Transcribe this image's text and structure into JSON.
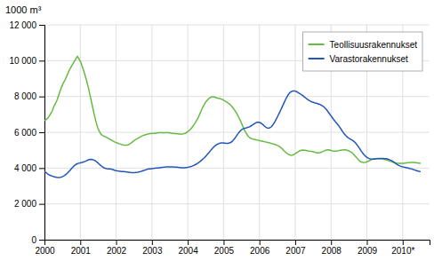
{
  "chart_data": {
    "type": "line",
    "ylabel": "1000 m³",
    "xlim": [
      2000,
      2010.75
    ],
    "xticks": [
      2000,
      2001,
      2002,
      2003,
      2004,
      2005,
      2006,
      2007,
      2008,
      2009,
      {
        "value": 2010,
        "label": "2010*"
      }
    ],
    "ylim": [
      0,
      12000
    ],
    "yticks": [
      0,
      {
        "value": 2000,
        "label": "2 000"
      },
      {
        "value": 4000,
        "label": "4 000"
      },
      {
        "value": 6000,
        "label": "6 000"
      },
      {
        "value": 8000,
        "label": "8 000"
      },
      {
        "value": 10000,
        "label": "10 000"
      },
      {
        "value": 12000,
        "label": "12 000"
      }
    ],
    "grid": true,
    "legend": "upper right",
    "series": [
      {
        "name": "Teollisuusrakennukset",
        "color": "#66bb44",
        "x": [
          2000,
          2000.04375,
          2000.0875,
          2000.13125,
          2000.175,
          2000.21875,
          2000.2625,
          2000.30625,
          2000.35,
          2000.39375,
          2000.4375,
          2000.48125,
          2000.525,
          2000.56875,
          2000.6125,
          2000.65625,
          2000.7,
          2000.74375,
          2000.7875,
          2000.83125,
          2000.875,
          2000.91875,
          2000.9625,
          2001.00625,
          2001.05,
          2001.09375,
          2001.1375,
          2001.18125,
          2001.225,
          2001.26875,
          2001.3125,
          2001.35625,
          2001.4,
          2001.44375,
          2001.4875,
          2001.53125,
          2001.575,
          2001.61875,
          2001.6625,
          2001.70625,
          2001.75,
          2001.79375,
          2001.8375,
          2001.88125,
          2001.925,
          2001.96875,
          2002.0125,
          2002.05625,
          2002.1,
          2002.14375,
          2002.1875,
          2002.23125,
          2002.275,
          2002.31875,
          2002.3625,
          2002.40625,
          2002.45,
          2002.49375,
          2002.5375,
          2002.58125,
          2002.625,
          2002.66875,
          2002.7125,
          2002.75625,
          2002.8,
          2002.84375,
          2002.8875,
          2002.93125,
          2002.975,
          2003.01875,
          2003.0625,
          2003.10625,
          2003.15,
          2003.19375,
          2003.2375,
          2003.28125,
          2003.325,
          2003.36875,
          2003.4125,
          2003.45625,
          2003.5,
          2003.54375,
          2003.5875,
          2003.63125,
          2003.675,
          2003.71875,
          2003.7625,
          2003.80625,
          2003.85,
          2003.89375,
          2003.9375,
          2003.98125,
          2004.025,
          2004.06875,
          2004.1125,
          2004.15625,
          2004.2,
          2004.24375,
          2004.2875,
          2004.33125,
          2004.375,
          2004.41875,
          2004.4625,
          2004.50625,
          2004.55,
          2004.59375,
          2004.6375,
          2004.68125,
          2004.725,
          2004.76875,
          2004.8125,
          2004.85625,
          2004.9,
          2004.94375,
          2004.9875,
          2005.03125,
          2005.075,
          2005.11875,
          2005.1625,
          2005.20625,
          2005.25,
          2005.29375,
          2005.3375,
          2005.38125,
          2005.425,
          2005.46875,
          2005.5125,
          2005.55625,
          2005.6,
          2005.64375,
          2005.6875,
          2005.73125,
          2005.775,
          2005.81875,
          2005.8625,
          2005.90625,
          2005.95,
          2005.99375,
          2006.0375,
          2006.08125,
          2006.125,
          2006.16875,
          2006.2125,
          2006.25625,
          2006.3,
          2006.34375,
          2006.3875,
          2006.43125,
          2006.475,
          2006.51875,
          2006.5625,
          2006.60625,
          2006.65,
          2006.69375,
          2006.7375,
          2006.78125,
          2006.825,
          2006.86875,
          2006.9125,
          2006.95625,
          2007,
          2007.04375,
          2007.0875,
          2007.13125,
          2007.175,
          2007.21875,
          2007.2625,
          2007.30625,
          2007.35,
          2007.39375,
          2007.4375,
          2007.48125,
          2007.525,
          2007.56875,
          2007.6125,
          2007.65625,
          2007.7,
          2007.74375,
          2007.7875,
          2007.83125,
          2007.875,
          2007.91875,
          2007.9625,
          2008.00625,
          2008.05,
          2008.09375,
          2008.1375,
          2008.18125,
          2008.225,
          2008.26875,
          2008.3125,
          2008.35625,
          2008.4,
          2008.44375,
          2008.4875,
          2008.53125,
          2008.575,
          2008.61875,
          2008.6625,
          2008.70625,
          2008.75,
          2008.79375,
          2008.8375,
          2008.88125,
          2008.925,
          2008.96875,
          2009.0125,
          2009.05625,
          2009.1,
          2009.14375,
          2009.1875,
          2009.23125,
          2009.275,
          2009.31875,
          2009.3625,
          2009.40625,
          2009.45,
          2009.49375,
          2009.5375,
          2009.58125,
          2009.625,
          2009.66875,
          2009.7125,
          2009.75625,
          2009.8,
          2009.84375,
          2009.8875,
          2009.93125,
          2009.975,
          2010.01875,
          2010.0625,
          2010.10625,
          2010.15,
          2010.19375,
          2010.2375,
          2010.28125,
          2010.325,
          2010.36875,
          2010.4125,
          2010.45625,
          2010.5
        ],
        "values": [
          6650,
          6700,
          6780,
          6900,
          7050,
          7200,
          7450,
          7600,
          7800,
          8050,
          8300,
          8550,
          8750,
          8900,
          9100,
          9300,
          9500,
          9650,
          9800,
          9950,
          10100,
          10250,
          10100,
          9950,
          9700,
          9450,
          9150,
          8850,
          8500,
          8100,
          7700,
          7300,
          6900,
          6550,
          6250,
          6050,
          5900,
          5820,
          5780,
          5750,
          5700,
          5650,
          5600,
          5550,
          5500,
          5450,
          5420,
          5380,
          5350,
          5320,
          5300,
          5280,
          5280,
          5290,
          5320,
          5380,
          5450,
          5520,
          5580,
          5630,
          5680,
          5730,
          5780,
          5820,
          5850,
          5880,
          5900,
          5920,
          5930,
          5940,
          5940,
          5950,
          5960,
          5970,
          5980,
          5980,
          5980,
          5980,
          5980,
          5970,
          5960,
          5950,
          5940,
          5930,
          5920,
          5910,
          5900,
          5900,
          5900,
          5920,
          5950,
          6000,
          6080,
          6150,
          6250,
          6380,
          6500,
          6650,
          6800,
          7000,
          7200,
          7400,
          7550,
          7700,
          7800,
          7900,
          7950,
          7980,
          7980,
          7950,
          7920,
          7900,
          7880,
          7850,
          7800,
          7750,
          7700,
          7650,
          7580,
          7500,
          7400,
          7280,
          7150,
          7000,
          6830,
          6650,
          6450,
          6250,
          6050,
          5900,
          5780,
          5700,
          5650,
          5620,
          5600,
          5580,
          5560,
          5540,
          5520,
          5500,
          5480,
          5460,
          5440,
          5420,
          5400,
          5370,
          5350,
          5320,
          5290,
          5250,
          5200,
          5130,
          5050,
          4960,
          4870,
          4800,
          4750,
          4720,
          4720,
          4750,
          4800,
          4860,
          4920,
          4970,
          5000,
          5010,
          5000,
          4980,
          4960,
          4950,
          4940,
          4920,
          4900,
          4870,
          4850,
          4850,
          4870,
          4900,
          4940,
          4980,
          5010,
          5020,
          5010,
          4980,
          4960,
          4950,
          4950,
          4960,
          4980,
          5000,
          5010,
          5020,
          5020,
          5000,
          4970,
          4930,
          4880,
          4800,
          4700,
          4600,
          4500,
          4410,
          4350,
          4320,
          4310,
          4330,
          4360,
          4400,
          4440,
          4480,
          4510,
          4530,
          4540,
          4540,
          4530,
          4520,
          4500,
          4480,
          4460,
          4430,
          4400,
          4370,
          4340,
          4310,
          4290,
          4270,
          4260,
          4260,
          4260,
          4270,
          4280,
          4290,
          4300,
          4310,
          4320,
          4320,
          4310,
          4300,
          4290,
          4280,
          4270
        ]
      },
      {
        "name": "Varastorakennukset",
        "color": "#2255bb",
        "x": [
          2000,
          2000.0434,
          2000.0868,
          2000.1302,
          2000.1736,
          2000.2169,
          2000.2603,
          2000.3037,
          2000.3471,
          2000.3905,
          2000.4339,
          2000.4773,
          2000.5207,
          2000.564,
          2000.6074,
          2000.6508,
          2000.6942,
          2000.7376,
          2000.781,
          2000.8244,
          2000.8678,
          2000.9112,
          2000.9545,
          2000.9979,
          2001.0413,
          2001.0847,
          2001.1281,
          2001.1715,
          2001.2149,
          2001.2583,
          2001.3017,
          2001.345,
          2001.3884,
          2001.4318,
          2001.4752,
          2001.5186,
          2001.562,
          2001.6054,
          2001.6488,
          2001.6921,
          2001.7355,
          2001.7789,
          2001.8223,
          2001.8657,
          2001.9091,
          2001.9525,
          2001.9959,
          2002.0393,
          2002.0826,
          2002.126,
          2002.1694,
          2002.2128,
          2002.2562,
          2002.2996,
          2002.343,
          2002.3864,
          2002.4298,
          2002.4731,
          2002.5165,
          2002.5599,
          2002.6033,
          2002.6467,
          2002.6901,
          2002.7335,
          2002.7769,
          2002.8202,
          2002.8636,
          2002.907,
          2002.9504,
          2002.9938,
          2003.0372,
          2003.0806,
          2003.124,
          2003.1674,
          2003.2107,
          2003.2541,
          2003.2975,
          2003.3409,
          2003.3843,
          2003.4277,
          2003.4711,
          2003.5145,
          2003.5579,
          2003.6012,
          2003.6446,
          2003.688,
          2003.7314,
          2003.7748,
          2003.8182,
          2003.8616,
          2003.905,
          2003.9483,
          2003.9917,
          2004.0351,
          2004.0785,
          2004.1219,
          2004.1653,
          2004.2087,
          2004.2521,
          2004.2955,
          2004.3388,
          2004.3822,
          2004.4256,
          2004.469,
          2004.5124,
          2004.5558,
          2004.5992,
          2004.6426,
          2004.686,
          2004.7293,
          2004.7727,
          2004.8161,
          2004.8595,
          2004.9029,
          2004.9463,
          2004.9897,
          2005.0331,
          2005.0764,
          2005.1198,
          2005.1632,
          2005.2066,
          2005.25,
          2005.2934,
          2005.3368,
          2005.3802,
          2005.4236,
          2005.4669,
          2005.5103,
          2005.5537,
          2005.5971,
          2005.6405,
          2005.6839,
          2005.7273,
          2005.7707,
          2005.814,
          2005.8574,
          2005.9008,
          2005.9442,
          2005.9876,
          2006.031,
          2006.0744,
          2006.1178,
          2006.1612,
          2006.2045,
          2006.2479,
          2006.2913,
          2006.3347,
          2006.3781,
          2006.4215,
          2006.4649,
          2006.5083,
          2006.5517,
          2006.595,
          2006.6384,
          2006.6818,
          2006.7252,
          2006.7686,
          2006.812,
          2006.8554,
          2006.8988,
          2006.9421,
          2006.9855,
          2007.0289,
          2007.0723,
          2007.1157,
          2007.1591,
          2007.2025,
          2007.2459,
          2007.2893,
          2007.3326,
          2007.376,
          2007.4194,
          2007.4628,
          2007.5062,
          2007.5496,
          2007.593,
          2007.6364,
          2007.6798,
          2007.7231,
          2007.7665,
          2007.8099,
          2007.8533,
          2007.8967,
          2007.9401,
          2007.9835,
          2008.0269,
          2008.0702,
          2008.1136,
          2008.157,
          2008.2004,
          2008.2438,
          2008.2872,
          2008.3306,
          2008.374,
          2008.4174,
          2008.4607,
          2008.5041,
          2008.5475,
          2008.5909,
          2008.6343,
          2008.6777,
          2008.7211,
          2008.7645,
          2008.8079,
          2008.8512,
          2008.8946,
          2008.938,
          2008.9814,
          2009.0248,
          2009.0682,
          2009.1116,
          2009.155,
          2009.1983,
          2009.2417,
          2009.2851,
          2009.3285,
          2009.3719,
          2009.4153,
          2009.4587,
          2009.5021,
          2009.5455,
          2009.5888,
          2009.6322,
          2009.6756,
          2009.719,
          2009.7624,
          2009.8058,
          2009.8492,
          2009.8926,
          2009.936,
          2009.9793,
          2010.0227,
          2010.0661,
          2010.1095,
          2010.1529,
          2010.1963,
          2010.2397,
          2010.2831,
          2010.3264,
          2010.3698,
          2010.4132,
          2010.4566,
          2010.5
        ],
        "values": [
          3800,
          3750,
          3680,
          3620,
          3580,
          3550,
          3520,
          3500,
          3480,
          3470,
          3480,
          3500,
          3540,
          3590,
          3660,
          3740,
          3830,
          3930,
          4030,
          4120,
          4190,
          4240,
          4270,
          4290,
          4310,
          4340,
          4370,
          4410,
          4450,
          4480,
          4490,
          4470,
          4440,
          4390,
          4320,
          4240,
          4160,
          4090,
          4030,
          3990,
          3970,
          3960,
          3950,
          3940,
          3920,
          3880,
          3860,
          3840,
          3830,
          3820,
          3810,
          3800,
          3790,
          3780,
          3770,
          3760,
          3750,
          3750,
          3750,
          3760,
          3770,
          3790,
          3810,
          3840,
          3870,
          3900,
          3930,
          3950,
          3960,
          3970,
          3980,
          3990,
          4000,
          4010,
          4020,
          4030,
          4040,
          4050,
          4060,
          4060,
          4060,
          4060,
          4060,
          4060,
          4050,
          4050,
          4040,
          4030,
          4020,
          4020,
          4020,
          4030,
          4040,
          4060,
          4080,
          4110,
          4150,
          4190,
          4240,
          4300,
          4360,
          4430,
          4510,
          4590,
          4680,
          4780,
          4880,
          4990,
          5090,
          5180,
          5260,
          5320,
          5360,
          5390,
          5400,
          5400,
          5390,
          5380,
          5380,
          5400,
          5440,
          5510,
          5610,
          5730,
          5860,
          5980,
          6080,
          6150,
          6200,
          6230,
          6250,
          6280,
          6310,
          6360,
          6420,
          6480,
          6530,
          6560,
          6560,
          6530,
          6470,
          6390,
          6310,
          6250,
          6230,
          6250,
          6310,
          6420,
          6550,
          6710,
          6880,
          7060,
          7240,
          7430,
          7620,
          7810,
          7980,
          8120,
          8220,
          8280,
          8310,
          8310,
          8280,
          8230,
          8180,
          8120,
          8060,
          7990,
          7920,
          7850,
          7790,
          7740,
          7700,
          7670,
          7640,
          7620,
          7590,
          7560,
          7520,
          7470,
          7400,
          7310,
          7200,
          7080,
          6960,
          6840,
          6720,
          6610,
          6510,
          6400,
          6280,
          6150,
          6020,
          5900,
          5800,
          5720,
          5660,
          5610,
          5560,
          5500,
          5420,
          5310,
          5190,
          5060,
          4930,
          4810,
          4710,
          4630,
          4570,
          4530,
          4510,
          4500,
          4500,
          4510,
          4520,
          4530,
          4540,
          4540,
          4540,
          4530,
          4520,
          4500,
          4470,
          4430,
          4380,
          4320,
          4260,
          4200,
          4150,
          4110,
          4080,
          4060,
          4040,
          4020,
          4000,
          3980,
          3960,
          3930,
          3900,
          3870,
          3840,
          3820,
          3800
        ]
      }
    ]
  }
}
